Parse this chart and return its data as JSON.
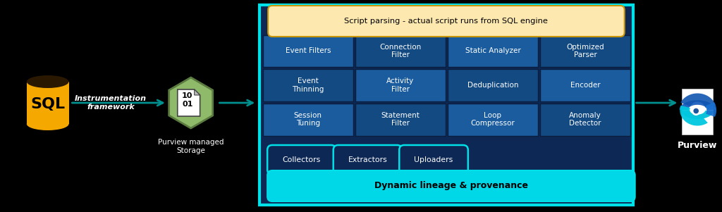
{
  "bg_color": "#000000",
  "sql_yellow": "#F5A800",
  "sql_top_dark": "#2a1800",
  "hex_green": "#8fba6a",
  "hex_dark_green": "#5a7a40",
  "script_box_fill": "#fde8b0",
  "script_box_edge": "#c8960a",
  "cyan_border": "#00e0e8",
  "cyan_pill_border": "#00e0e8",
  "cyan_pill_fill": "#00d8e8",
  "white": "#ffffff",
  "black": "#000000",
  "inner_bg": "#0d2855",
  "cell_blue1": "#1a5c9e",
  "cell_blue2": "#134a82",
  "cell_border": "#0a1e40",
  "arrow_color": "#009090",
  "purview_bg": "#ffffff",
  "grid_rows": [
    [
      "Event Filters",
      "Connection\nFilter",
      "Static Analyzer",
      "Optimized\nParser"
    ],
    [
      "Event\nThinning",
      "Activity\nFilter",
      "Deduplication",
      "Encoder"
    ],
    [
      "Session\nTuning",
      "Statement\nFilter",
      "Loop\nCompressor",
      "Anomaly\nDetector"
    ]
  ],
  "script_label": "Script parsing - actual script runs from SQL engine",
  "collectors_labels": [
    "Collectors",
    "Extractors",
    "Uploaders"
  ],
  "dynamic_label": "Dynamic lineage & provenance",
  "purview_label": "Purview",
  "storage_label": "Purview managed\nStorage",
  "instrumentation_label": "Instrumentation\nframework",
  "sql_label": "SQL",
  "doc_label": "10\n01",
  "fig_w": 10.24,
  "fig_h": 3.01,
  "dpi": 100
}
